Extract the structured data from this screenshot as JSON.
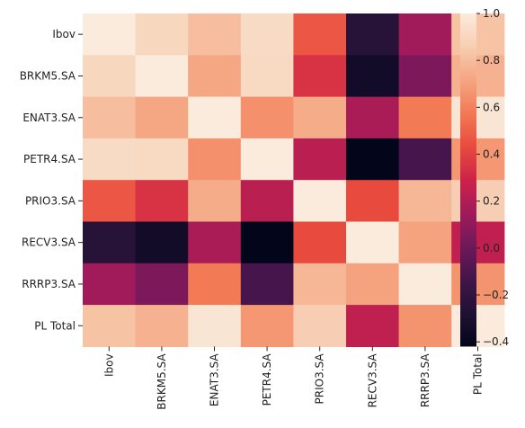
{
  "chart_data": {
    "type": "heatmap",
    "title": "",
    "xlabel": "",
    "ylabel": "",
    "x_labels": [
      "Ibov",
      "BRKM5.SA",
      "ENAT3.SA",
      "PETR4.SA",
      "PRIO3.SA",
      "RECV3.SA",
      "RRRP3.SA",
      "PL Total"
    ],
    "y_labels": [
      "Ibov",
      "BRKM5.SA",
      "ENAT3.SA",
      "PETR4.SA",
      "PRIO3.SA",
      "RECV3.SA",
      "RRRP3.SA",
      "PL Total"
    ],
    "values": [
      [
        1.0,
        0.9,
        0.8,
        0.92,
        0.47,
        -0.25,
        0.15,
        0.82
      ],
      [
        0.9,
        1.0,
        0.72,
        0.91,
        0.35,
        -0.34,
        0.05,
        0.76
      ],
      [
        0.8,
        0.72,
        1.0,
        0.65,
        0.74,
        0.18,
        0.58,
        0.97
      ],
      [
        0.92,
        0.91,
        0.65,
        1.0,
        0.23,
        -0.42,
        -0.12,
        0.67
      ],
      [
        0.47,
        0.35,
        0.74,
        0.23,
        1.0,
        0.43,
        0.78,
        0.86
      ],
      [
        -0.25,
        -0.34,
        0.18,
        -0.42,
        0.43,
        1.0,
        0.71,
        0.25
      ],
      [
        0.15,
        0.05,
        0.58,
        -0.12,
        0.78,
        0.71,
        1.0,
        0.66
      ],
      [
        0.82,
        0.76,
        0.97,
        0.67,
        0.86,
        0.25,
        0.66,
        1.0
      ]
    ],
    "colorscale": "rocket",
    "vmin": -0.42,
    "vmax": 1.0,
    "colorbar": {
      "ticks": [
        1.0,
        0.8,
        0.6,
        0.4,
        0.2,
        0.0,
        -0.2,
        -0.4
      ],
      "tick_labels": [
        "1.0",
        "0.8",
        "0.6",
        "0.4",
        "0.2",
        "0.0",
        "−0.2",
        "−0.4"
      ]
    },
    "grid": false,
    "legend": "colorbar-right"
  }
}
